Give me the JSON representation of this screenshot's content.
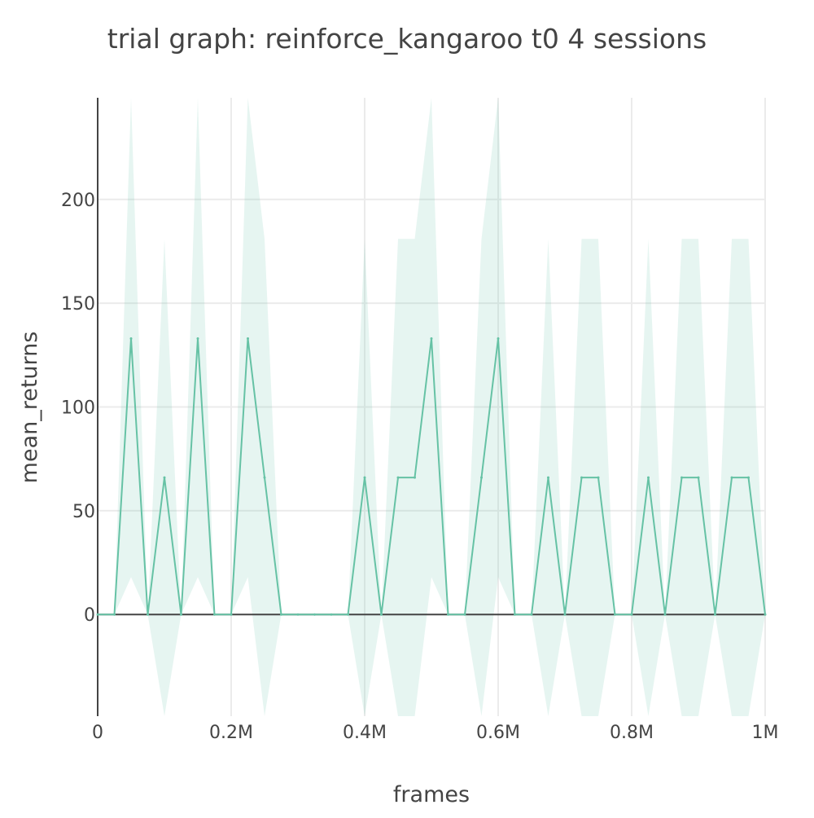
{
  "chart_data": {
    "type": "line",
    "title": "trial graph: reinforce_kangaroo t0 4 sessions",
    "xlabel": "frames",
    "ylabel": "mean_returns",
    "xlim": [
      0,
      1000000
    ],
    "ylim": [
      -49,
      249
    ],
    "x_ticks": [
      {
        "value": 0,
        "label": "0"
      },
      {
        "value": 200000,
        "label": "0.2M"
      },
      {
        "value": 400000,
        "label": "0.4M"
      },
      {
        "value": 600000,
        "label": "0.6M"
      },
      {
        "value": 800000,
        "label": "0.8M"
      },
      {
        "value": 1000000,
        "label": "1M"
      }
    ],
    "y_ticks": [
      {
        "value": 0,
        "label": "0"
      },
      {
        "value": 50,
        "label": "50"
      },
      {
        "value": 100,
        "label": "100"
      },
      {
        "value": 150,
        "label": "150"
      },
      {
        "value": 200,
        "label": "200"
      }
    ],
    "grid": true,
    "line_color": "#66c2a5",
    "band_color": "#66c2a5",
    "x": [
      0,
      25000,
      50000,
      75000,
      100000,
      125000,
      150000,
      175000,
      200000,
      225000,
      250000,
      275000,
      300000,
      325000,
      350000,
      375000,
      400000,
      425000,
      450000,
      475000,
      500000,
      525000,
      550000,
      575000,
      600000,
      625000,
      650000,
      675000,
      700000,
      725000,
      750000,
      775000,
      800000,
      825000,
      850000,
      875000,
      900000,
      925000,
      950000,
      975000,
      1000000
    ],
    "series": [
      {
        "values": [
          0,
          0,
          133,
          0,
          66,
          0,
          133,
          0,
          0,
          133,
          66,
          0,
          0,
          0,
          0,
          0,
          66,
          0,
          66,
          66,
          133,
          0,
          0,
          66,
          133,
          0,
          0,
          66,
          0,
          66,
          66,
          0,
          0,
          66,
          0,
          66,
          66,
          0,
          66,
          66,
          0
        ],
        "upper": [
          0,
          0,
          249,
          0,
          181,
          0,
          249,
          0,
          0,
          249,
          181,
          0,
          0,
          0,
          0,
          0,
          181,
          0,
          181,
          181,
          249,
          0,
          0,
          181,
          249,
          0,
          0,
          181,
          0,
          181,
          181,
          0,
          0,
          181,
          0,
          181,
          181,
          0,
          181,
          181,
          0
        ],
        "lower": [
          0,
          0,
          18,
          0,
          -49,
          0,
          18,
          0,
          0,
          18,
          -49,
          0,
          0,
          0,
          0,
          0,
          -49,
          0,
          -49,
          -49,
          18,
          0,
          0,
          -49,
          18,
          0,
          0,
          -49,
          0,
          -49,
          -49,
          0,
          0,
          -49,
          0,
          -49,
          -49,
          0,
          -49,
          -49,
          0
        ]
      }
    ]
  }
}
